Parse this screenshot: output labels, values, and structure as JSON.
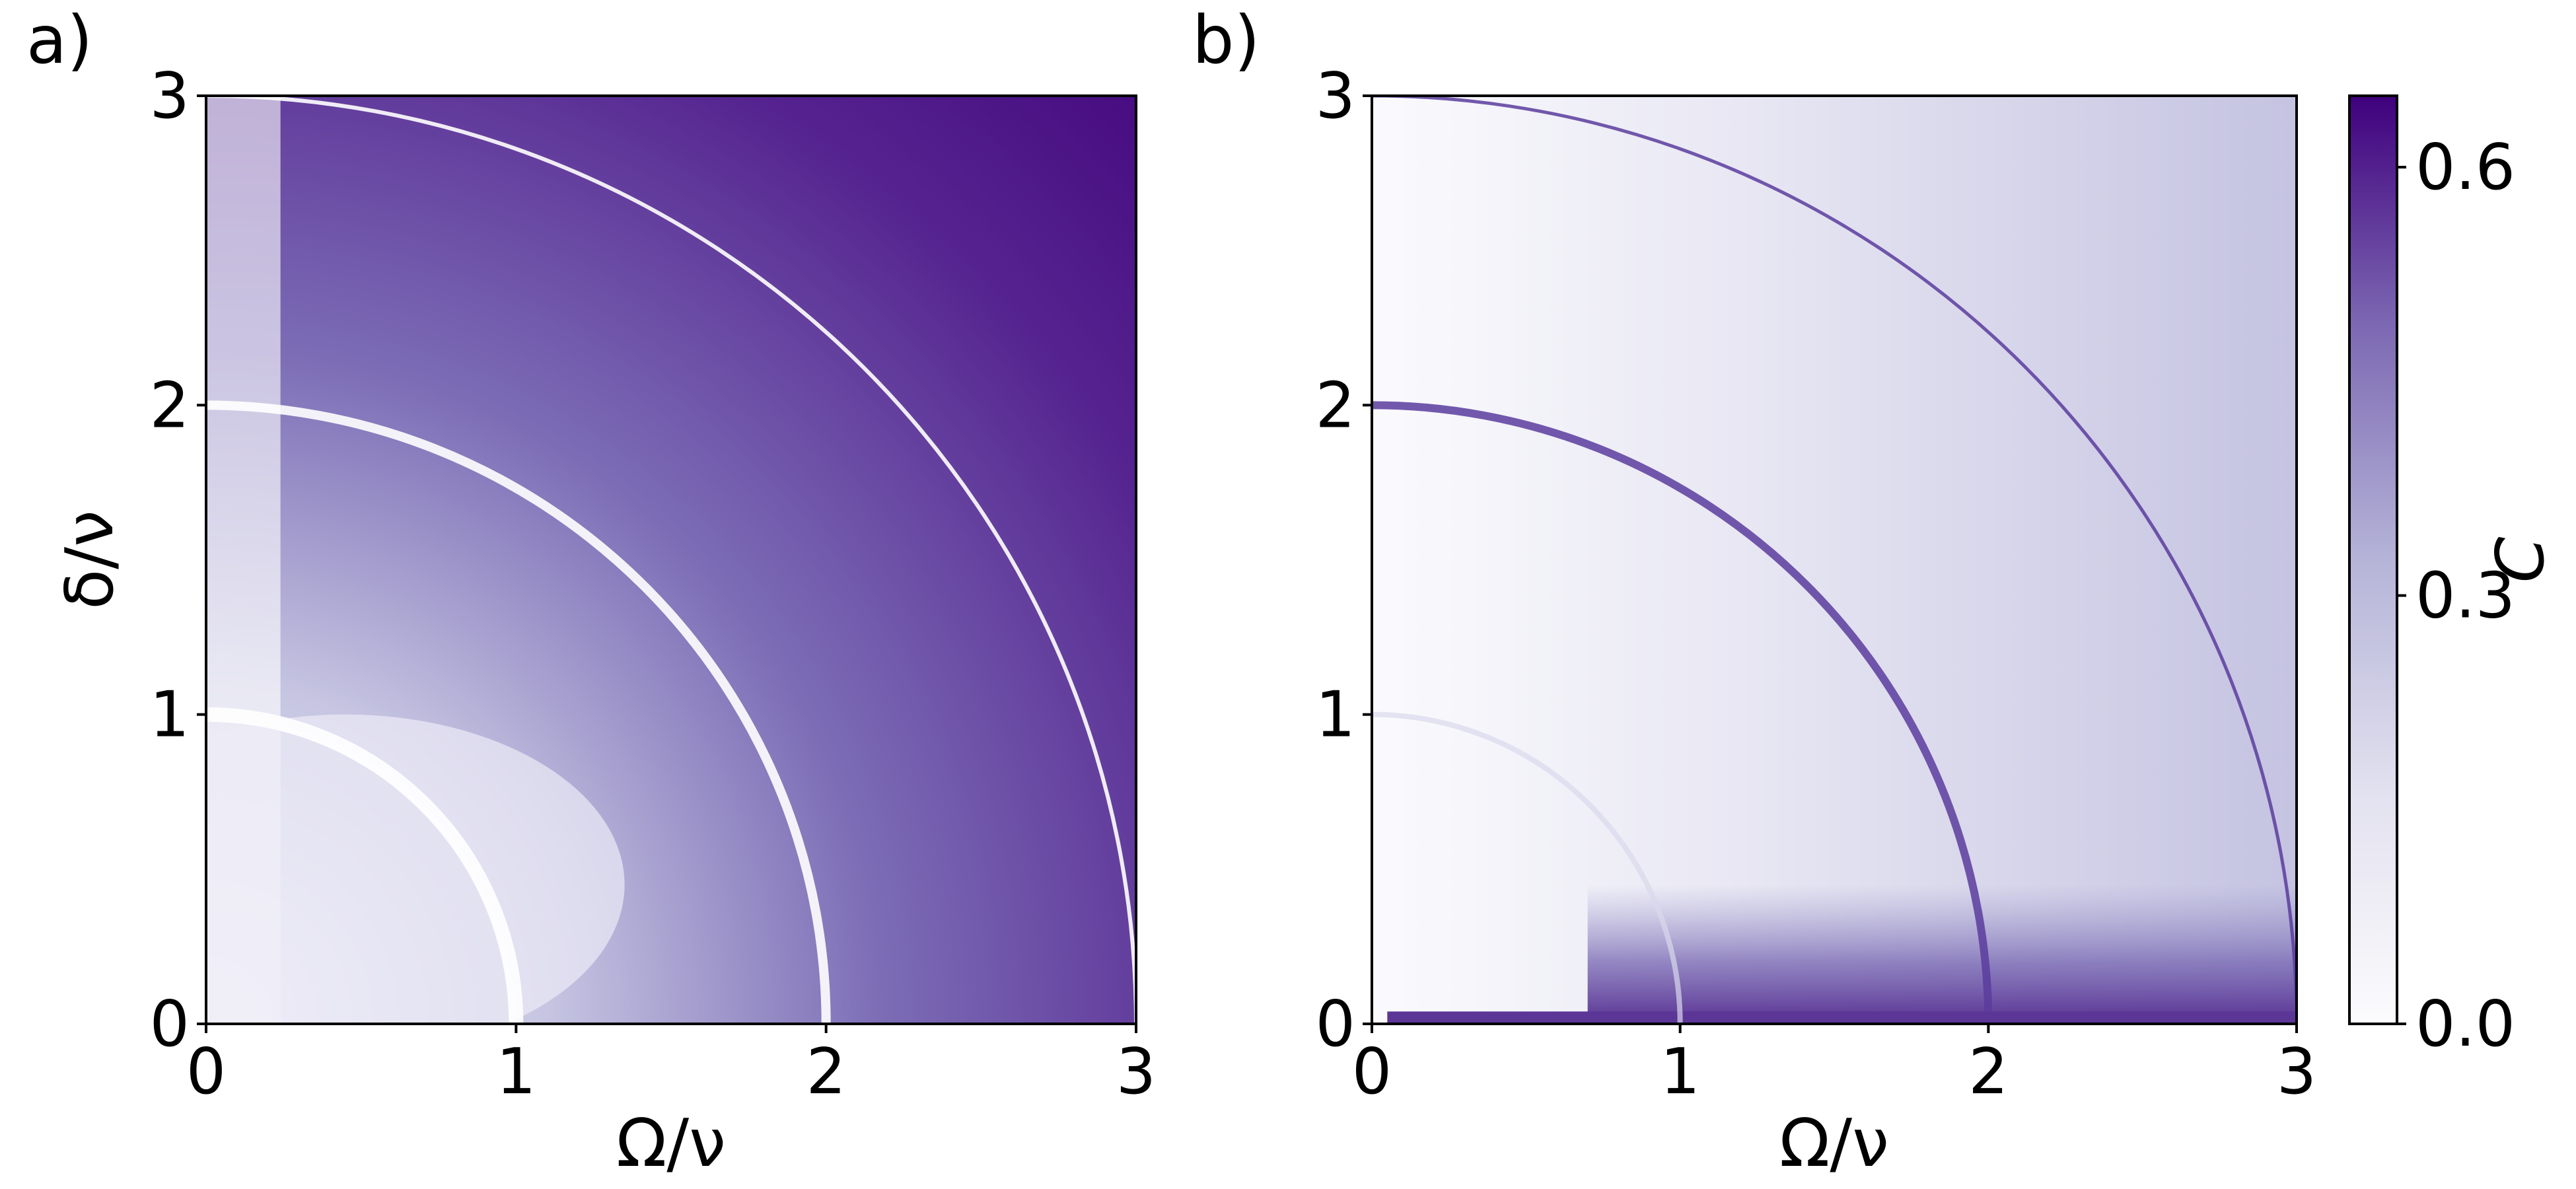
{
  "figure": {
    "colors": {
      "low": "#ffffff",
      "mid": "#9a99cc",
      "high": "#3f007d",
      "axis": "#000000"
    },
    "colormap": "Purples"
  },
  "chart_data": [
    {
      "type": "heatmap",
      "panel_label": "a)",
      "xlabel": "Ω/ν",
      "ylabel": "δ/ν",
      "xlim": [
        0,
        3
      ],
      "ylim": [
        0,
        3
      ],
      "x_ticks": [
        "0",
        "1",
        "2",
        "3"
      ],
      "y_ticks": [
        "0",
        "1",
        "2",
        "3"
      ],
      "resonance_radii": [
        1,
        2,
        3
      ],
      "background_trend": "C increases with distance from origin; low near origin, ~0.65 near (3,1)",
      "features": [
        {
          "name": "ring-r1",
          "radius": 1,
          "appearance": "bright (low C) arc"
        },
        {
          "name": "ring-r2",
          "radius": 2,
          "appearance": "bright (low C) arc"
        },
        {
          "name": "ring-r3",
          "radius": 3,
          "appearance": "thin bright arc"
        }
      ]
    },
    {
      "type": "heatmap",
      "panel_label": "b)",
      "xlabel": "Ω/ν",
      "ylabel": "",
      "xlim": [
        0,
        3
      ],
      "ylim": [
        0,
        3
      ],
      "x_ticks": [
        "0",
        "1",
        "2",
        "3"
      ],
      "y_ticks": [
        "0",
        "1",
        "2",
        "3"
      ],
      "resonance_radii": [
        1,
        2,
        3
      ],
      "background_trend": "mostly low C; enhanced band near δ≈0 for Ω>0.7",
      "features": [
        {
          "name": "ring-r2",
          "radius": 2,
          "appearance": "dark (high C) arc"
        },
        {
          "name": "ring-r3",
          "radius": 3,
          "appearance": "thin dark arc"
        },
        {
          "name": "band-delta0",
          "radius": 0,
          "appearance": "dark horizontal strip at δ≈0"
        }
      ]
    }
  ],
  "colorbar": {
    "label": "C",
    "min": 0.0,
    "max": 0.65,
    "ticks": [
      "0.0",
      "0.3",
      "0.6"
    ],
    "tick_values": [
      0.0,
      0.3,
      0.6
    ]
  }
}
